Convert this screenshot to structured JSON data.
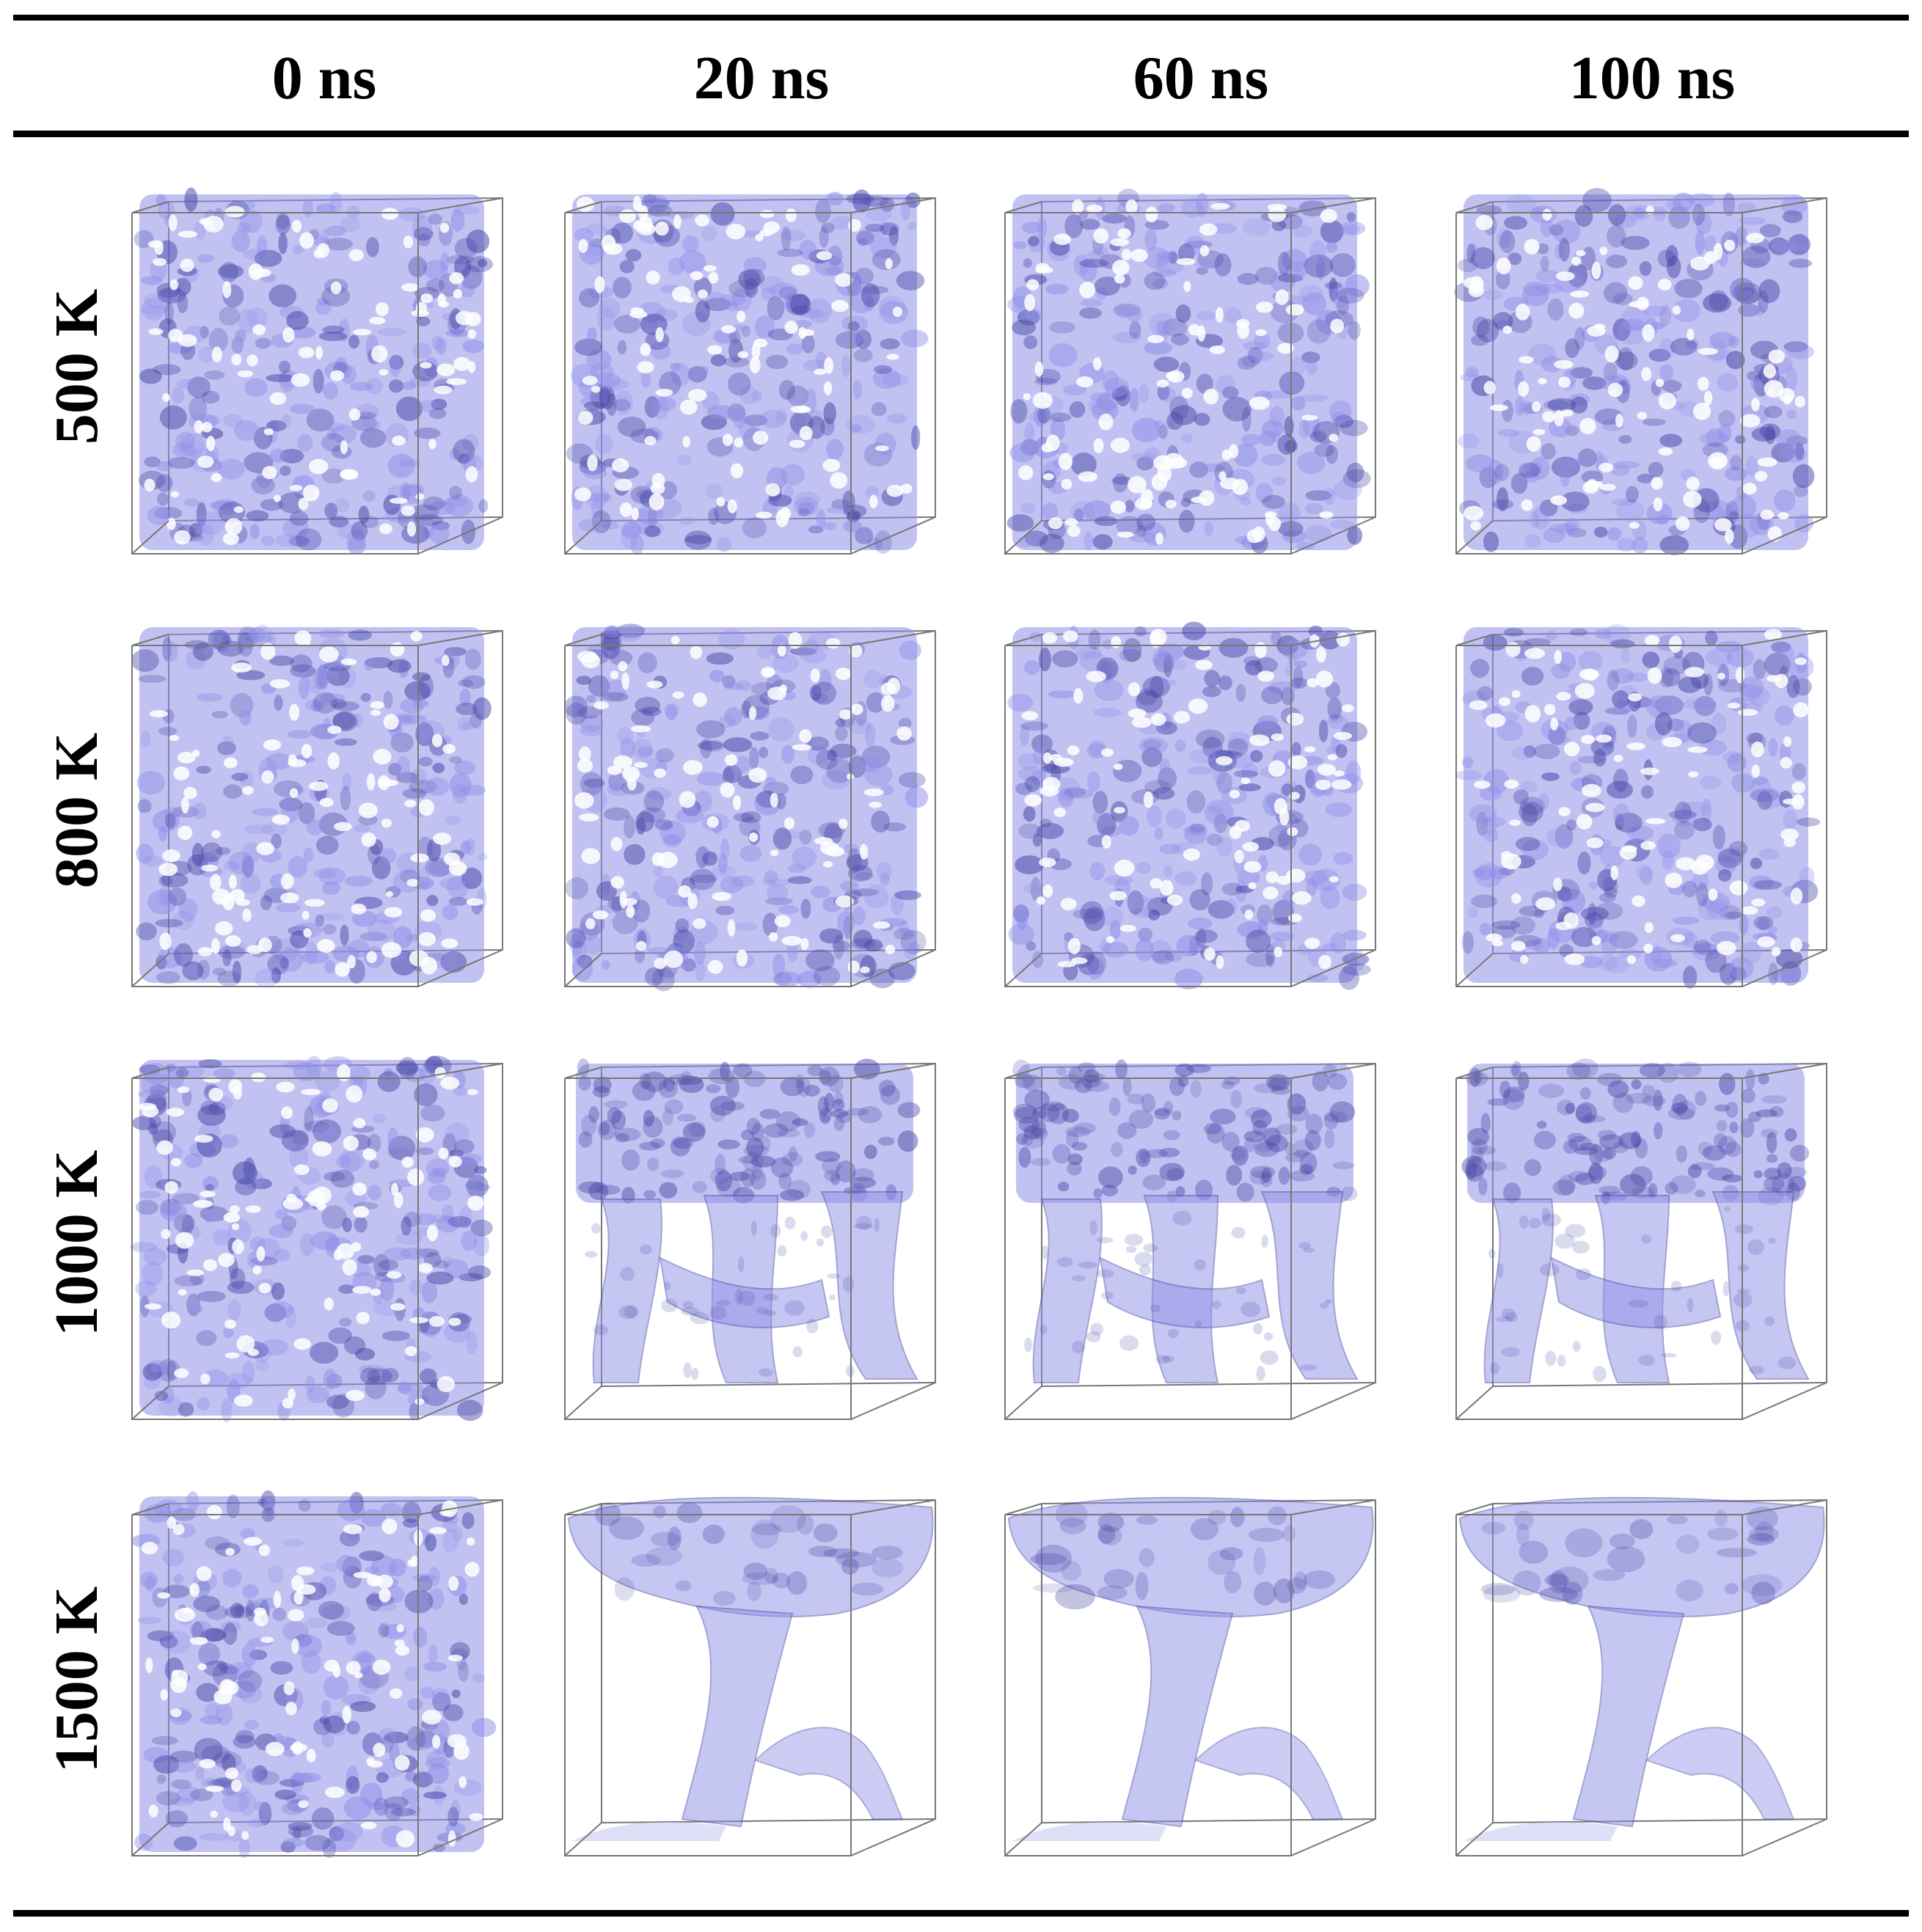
{
  "figure": {
    "columns": [
      {
        "label": "0 ns"
      },
      {
        "label": "20 ns"
      },
      {
        "label": "60 ns"
      },
      {
        "label": "100 ns"
      }
    ],
    "rows": [
      {
        "label": "500 K",
        "coarsening": [
          0,
          0,
          0,
          0
        ]
      },
      {
        "label": "800 K",
        "coarsening": [
          0,
          0,
          0,
          0
        ]
      },
      {
        "label": "1000 K",
        "coarsening": [
          0,
          1,
          1,
          1
        ]
      },
      {
        "label": "1500 K",
        "coarsening": [
          0,
          2,
          2,
          2
        ]
      }
    ],
    "colors": {
      "surface_fill": "#8f8fe8",
      "surface_stroke": "#4a4aa8",
      "surface_light": "#c9c9f2",
      "box_edge": "#777777",
      "rule": "#000000"
    }
  }
}
